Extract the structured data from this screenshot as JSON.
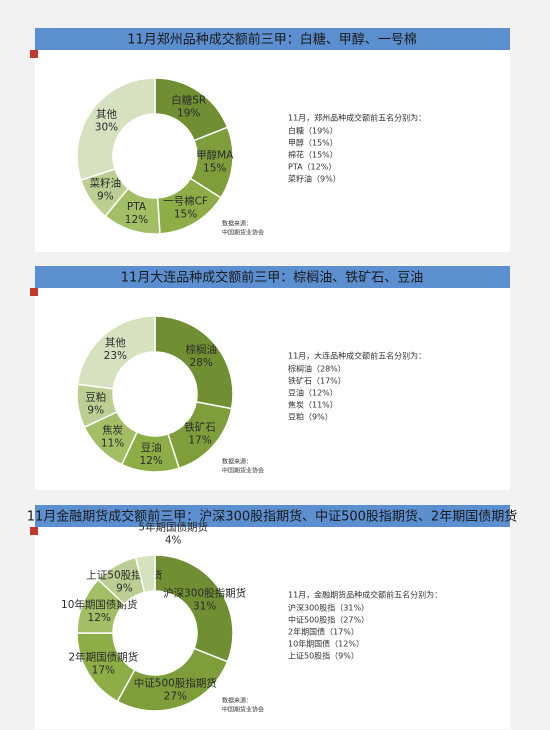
{
  "chart_data": [
    {
      "type": "pie",
      "title": "11月郑州品种成交额前三甲：白糖、甲醇、一号棉",
      "categories": [
        "白糖SR",
        "甲醇MA",
        "一号棉CF",
        "PTA",
        "菜籽油",
        "其他"
      ],
      "values": [
        19,
        15,
        15,
        12,
        9,
        30
      ],
      "value_labels": [
        "19%",
        "15%",
        "15%",
        "12%",
        "9%",
        "30%"
      ],
      "colors": [
        "#6f8f32",
        "#7e9e3b",
        "#8dad47",
        "#a2bf66",
        "#bccf92",
        "#d6e1c0"
      ],
      "note_title": "11月，郑州品种成交额前五名分别为：",
      "notes": [
        "白糖（19%）",
        "甲醇（15%）",
        "棉花（15%）",
        "PTA（12%）",
        "菜籽油（9%）"
      ],
      "source": [
        "数据来源：",
        "中国期货业协会"
      ]
    },
    {
      "type": "pie",
      "title": "11月大连品种成交额前三甲：棕榈油、铁矿石、豆油",
      "categories": [
        "棕榈油",
        "铁矿石",
        "豆油",
        "焦炭",
        "豆粕",
        "其他"
      ],
      "values": [
        28,
        17,
        12,
        11,
        9,
        23
      ],
      "value_labels": [
        "28%",
        "17%",
        "12%",
        "11%",
        "9%",
        "23%"
      ],
      "colors": [
        "#6f8f32",
        "#7e9e3b",
        "#8dad47",
        "#a2bf66",
        "#bccf92",
        "#d6e1c0"
      ],
      "note_title": "11月，大连品种成交额前五名分别为：",
      "notes": [
        "棕榈油（28%）",
        "铁矿石（17%）",
        "豆油（12%）",
        "焦炭（11%）",
        "豆粕（9%）"
      ],
      "source": [
        "数据来源：",
        "中国期货业协会"
      ]
    },
    {
      "type": "pie",
      "title": "11月金融期货成交额前三甲：沪深300股指期货、中证500股指期货、2年期国债期货",
      "categories": [
        "沪深300股指期货",
        "中证500股指期货",
        "2年期国债期货",
        "10年期国债期货",
        "上证50股指期货",
        "5年期国债期货"
      ],
      "values": [
        31,
        27,
        17,
        12,
        9,
        4
      ],
      "value_labels": [
        "31%",
        "27%",
        "17%",
        "12%",
        "9%",
        "4%"
      ],
      "colors": [
        "#6f8f32",
        "#7e9e3b",
        "#8dad47",
        "#a2bf66",
        "#bccf92",
        "#d6e1c0"
      ],
      "note_title": "11月，金融期货品种成交额前五名分别为：",
      "notes": [
        "沪深300股指（31%）",
        "中证500股指（27%）",
        "2年期国债（17%）",
        "10年期国债（12%）",
        "上证50股指（9%）"
      ],
      "source": [
        "数据来源：",
        "中国期货业协会"
      ]
    }
  ]
}
